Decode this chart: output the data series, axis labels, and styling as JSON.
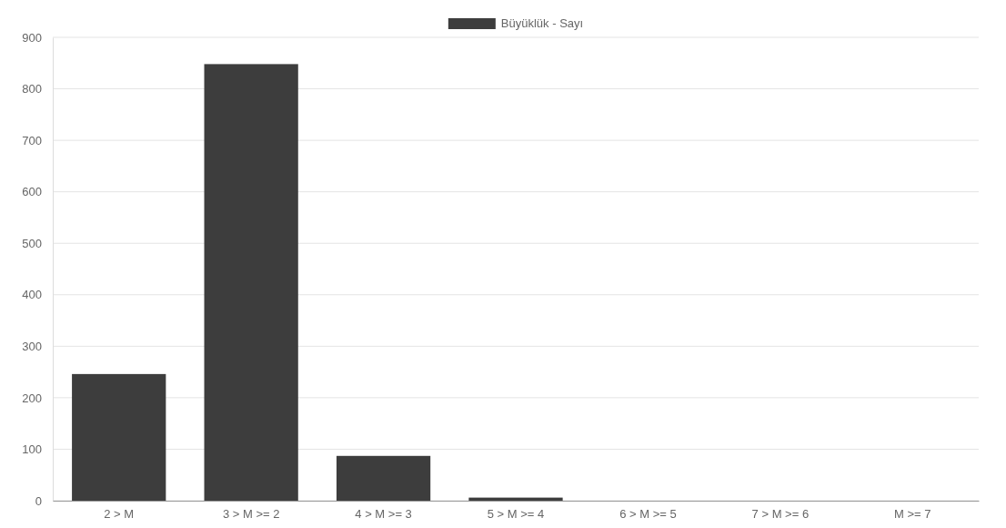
{
  "chart_data": {
    "type": "bar",
    "categories": [
      "2 > M",
      "3 > M >= 2",
      "4 > M >= 3",
      "5 > M >= 4",
      "6 > M >= 5",
      "7 > M >= 6",
      "M >= 7"
    ],
    "series": [
      {
        "name": "Büyüklük - Sayı",
        "color": "#3d3d3d",
        "values": [
          246,
          848,
          87,
          6,
          0,
          0,
          0
        ]
      }
    ],
    "ylim": [
      0,
      900
    ],
    "yticks": [
      0,
      100,
      200,
      300,
      400,
      500,
      600,
      700,
      800,
      900
    ],
    "grid": "y",
    "legend": "top"
  }
}
